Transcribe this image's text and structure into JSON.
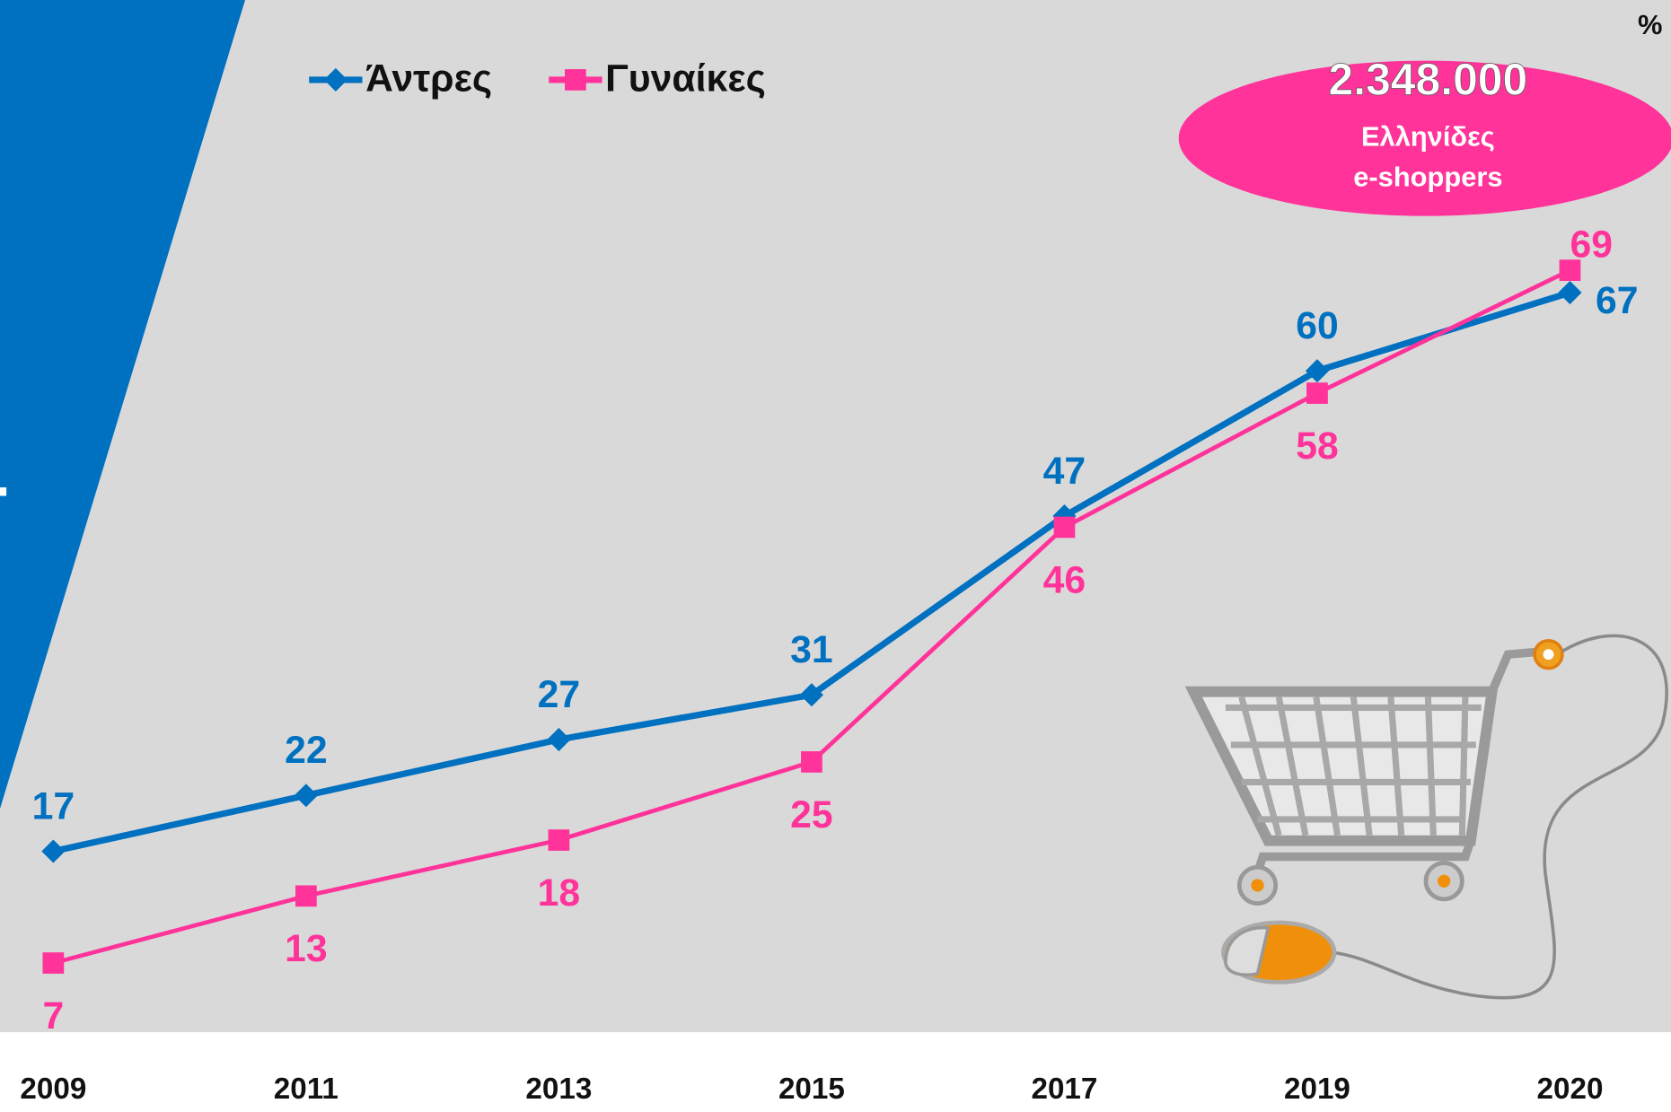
{
  "chart_data": {
    "type": "line",
    "unit": "%",
    "categories": [
      "2009",
      "2011",
      "2013",
      "2015",
      "2017",
      "2019",
      "2020"
    ],
    "series": [
      {
        "name": "Άντρες",
        "color": "#0070c0",
        "values": [
          17,
          22,
          27,
          31,
          47,
          60,
          67
        ]
      },
      {
        "name": "Γυναίκες",
        "color": "#ff3399",
        "values": [
          7,
          13,
          18,
          25,
          46,
          58,
          69
        ]
      }
    ],
    "ylim": [
      0,
      100
    ],
    "callout": {
      "title": "2.348.000",
      "lines": [
        "Ελληνίδες",
        "e-shoppers"
      ],
      "color": "#ff3399"
    }
  }
}
